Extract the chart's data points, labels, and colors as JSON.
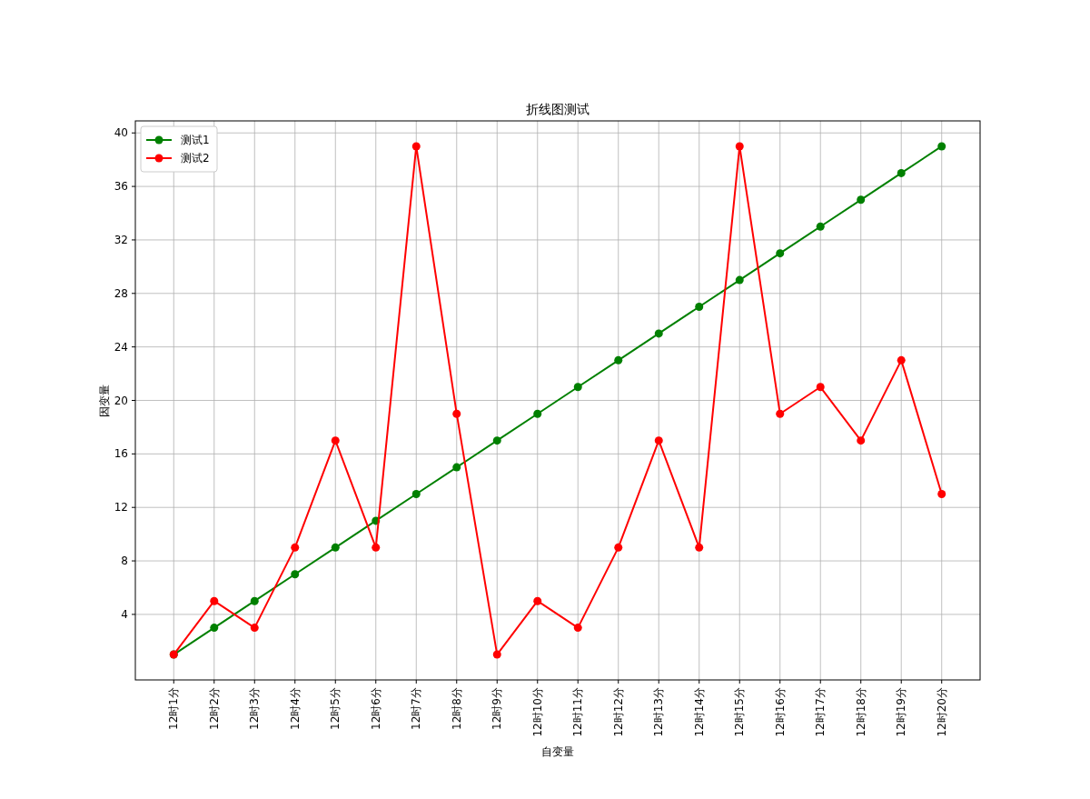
{
  "chart_data": {
    "type": "line",
    "title": "折线图测试",
    "xlabel": "自变量",
    "ylabel": "因变量",
    "categories": [
      "12时1分",
      "12时2分",
      "12时3分",
      "12时4分",
      "12时5分",
      "12时6分",
      "12时7分",
      "12时8分",
      "12时9分",
      "12时10分",
      "12时11分",
      "12时12分",
      "12时13分",
      "12时14分",
      "12时15分",
      "12时16分",
      "12时17分",
      "12时18分",
      "12时19分",
      "12时20分"
    ],
    "series": [
      {
        "name": "测试1",
        "color": "#008000",
        "values": [
          1,
          3,
          5,
          7,
          9,
          11,
          13,
          15,
          17,
          19,
          21,
          23,
          25,
          27,
          29,
          31,
          33,
          35,
          37,
          39
        ]
      },
      {
        "name": "测试2",
        "color": "#ff0000",
        "values": [
          1,
          5,
          3,
          9,
          17,
          9,
          39,
          19,
          1,
          5,
          3,
          9,
          17,
          9,
          39,
          19,
          21,
          17,
          23,
          13
        ]
      }
    ],
    "ylim": [
      -0.9,
      40.9
    ],
    "yticks": [
      4,
      8,
      12,
      16,
      20,
      24,
      28,
      32,
      36,
      40
    ],
    "grid": true,
    "legend": "top left",
    "marker": "circle",
    "line_style": "solid"
  }
}
